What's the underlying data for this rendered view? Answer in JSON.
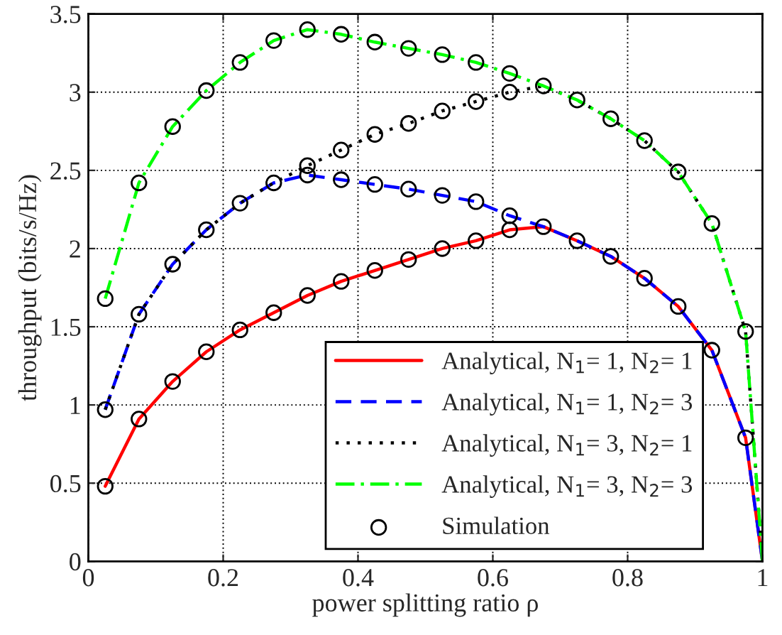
{
  "chart_data": {
    "type": "line",
    "xlabel": "power splitting ratio ρ",
    "ylabel": "throughput (bits/s/Hz)",
    "xlim": [
      0,
      1
    ],
    "ylim": [
      0,
      3.5
    ],
    "xticks": [
      0,
      0.2,
      0.4,
      0.6,
      0.8,
      1
    ],
    "yticks": [
      0,
      0.5,
      1,
      1.5,
      2,
      2.5,
      3,
      3.5
    ],
    "grid": true,
    "legend": "bottom right",
    "series": [
      {
        "name": "Analytical, N$_{1}$= 1, N$_{2}$= 1",
        "color": "#ff0000",
        "line_style": "solid",
        "marker": "none",
        "x": [
          0.025,
          0.075,
          0.125,
          0.175,
          0.225,
          0.275,
          0.325,
          0.375,
          0.425,
          0.475,
          0.525,
          0.575,
          0.625,
          0.675,
          0.725,
          0.775,
          0.825,
          0.875,
          0.925,
          0.975,
          1.0
        ],
        "values": [
          0.48,
          0.91,
          1.15,
          1.34,
          1.48,
          1.59,
          1.7,
          1.79,
          1.86,
          1.93,
          2.0,
          2.05,
          2.12,
          2.14,
          2.05,
          1.95,
          1.81,
          1.63,
          1.35,
          0.79,
          0
        ]
      },
      {
        "name": "Analytical, N$_{1}$= 1, N$_{2}$= 3",
        "color": "#0000ff",
        "line_style": "dashed",
        "marker": "none",
        "x": [
          0.025,
          0.075,
          0.125,
          0.175,
          0.225,
          0.275,
          0.325,
          0.375,
          0.425,
          0.475,
          0.525,
          0.575,
          0.625,
          0.675,
          0.725,
          0.775,
          0.825,
          0.875,
          0.925,
          0.975,
          1.0
        ],
        "values": [
          0.97,
          1.58,
          1.9,
          2.12,
          2.29,
          2.42,
          2.47,
          2.44,
          2.41,
          2.38,
          2.34,
          2.3,
          2.21,
          2.14,
          2.05,
          1.95,
          1.81,
          1.63,
          1.35,
          0.79,
          0
        ]
      },
      {
        "name": "Analytical, N$_{1}$= 3, N$_{2}$= 1",
        "color": "#000000",
        "line_style": "dotted",
        "marker": "none",
        "x": [
          0.025,
          0.075,
          0.125,
          0.175,
          0.225,
          0.275,
          0.325,
          0.375,
          0.425,
          0.475,
          0.525,
          0.575,
          0.625,
          0.675,
          0.725,
          0.775,
          0.825,
          0.875,
          0.925,
          0.975,
          1.0
        ],
        "values": [
          0.97,
          1.58,
          1.9,
          2.12,
          2.29,
          2.42,
          2.53,
          2.63,
          2.73,
          2.8,
          2.88,
          2.94,
          3.0,
          3.04,
          2.95,
          2.83,
          2.69,
          2.49,
          2.16,
          1.47,
          0
        ]
      },
      {
        "name": "Analytical, N$_{1}$= 3, N$_{2}$= 3",
        "color": "#00ff00",
        "line_style": "dashdot",
        "marker": "none",
        "x": [
          0.025,
          0.075,
          0.125,
          0.175,
          0.225,
          0.275,
          0.325,
          0.375,
          0.425,
          0.475,
          0.525,
          0.575,
          0.625,
          0.675,
          0.725,
          0.775,
          0.825,
          0.875,
          0.925,
          0.975,
          1.0
        ],
        "values": [
          1.68,
          2.42,
          2.78,
          3.01,
          3.19,
          3.33,
          3.4,
          3.37,
          3.32,
          3.28,
          3.24,
          3.19,
          3.12,
          3.04,
          2.95,
          2.83,
          2.69,
          2.49,
          2.16,
          1.47,
          0
        ]
      },
      {
        "name": "Simulation",
        "type": "scatter",
        "color": "#000000",
        "marker": "circle",
        "x": [
          0.025,
          0.075,
          0.125,
          0.175,
          0.225,
          0.275,
          0.325,
          0.375,
          0.425,
          0.475,
          0.525,
          0.575,
          0.625,
          0.675,
          0.725,
          0.775,
          0.825,
          0.875,
          0.925,
          0.975,
          0.025,
          0.075,
          0.125,
          0.175,
          0.225,
          0.275,
          0.325,
          0.375,
          0.425,
          0.475,
          0.525,
          0.575,
          0.625,
          0.325,
          0.375,
          0.425,
          0.475,
          0.525,
          0.575,
          0.625,
          0.025,
          0.075,
          0.125,
          0.175,
          0.225,
          0.275,
          0.325,
          0.375,
          0.425,
          0.475,
          0.525,
          0.575,
          0.625,
          0.675,
          0.725,
          0.775,
          0.825,
          0.875,
          0.925,
          0.975
        ],
        "values": [
          0.48,
          0.91,
          1.15,
          1.34,
          1.48,
          1.59,
          1.7,
          1.79,
          1.86,
          1.93,
          2.0,
          2.05,
          2.12,
          2.14,
          2.05,
          1.95,
          1.81,
          1.63,
          1.35,
          0.79,
          0.97,
          1.58,
          1.9,
          2.12,
          2.29,
          2.42,
          2.47,
          2.44,
          2.41,
          2.38,
          2.34,
          2.3,
          2.21,
          2.53,
          2.63,
          2.73,
          2.8,
          2.88,
          2.94,
          3.0,
          1.68,
          2.42,
          2.78,
          3.01,
          3.19,
          3.33,
          3.4,
          3.37,
          3.32,
          3.28,
          3.24,
          3.19,
          3.12,
          3.04,
          2.95,
          2.83,
          2.69,
          2.49,
          2.16,
          1.47
        ]
      }
    ]
  }
}
